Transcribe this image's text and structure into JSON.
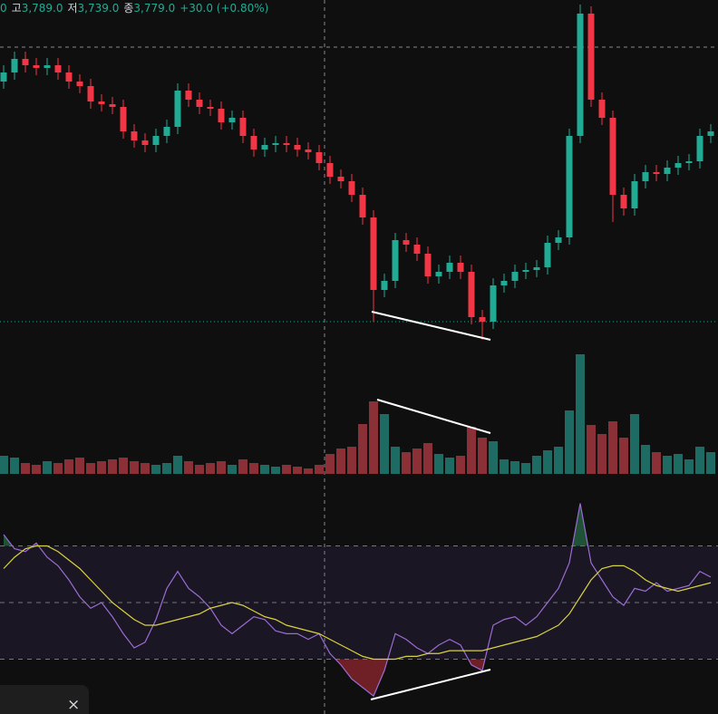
{
  "header": {
    "lead": "0",
    "high_label": "고",
    "high": "3,789.0",
    "low_label": "저",
    "low": "3,739.0",
    "close_label": "종",
    "close": "3,779.0",
    "change": "+30.0 (+0.80%)"
  },
  "panel": {
    "close_button": "×"
  },
  "chart_data": [
    {
      "type": "candlestick",
      "up_color": "#22ab94",
      "down_color": "#f23645",
      "ylim": [
        3600,
        3980
      ],
      "open": [
        3890,
        3900,
        3915,
        3908,
        3905,
        3908,
        3900,
        3890,
        3885,
        3868,
        3865,
        3862,
        3835,
        3825,
        3820,
        3830,
        3840,
        3880,
        3870,
        3862,
        3860,
        3845,
        3850,
        3830,
        3815,
        3820,
        3822,
        3820,
        3815,
        3812,
        3800,
        3785,
        3780,
        3765,
        3740,
        3660,
        3670,
        3715,
        3710,
        3700,
        3675,
        3680,
        3690,
        3680,
        3630,
        3625,
        3665,
        3670,
        3680,
        3682,
        3685,
        3712,
        3718,
        3830,
        3965,
        3870,
        3850,
        3765,
        3750,
        3780,
        3790,
        3788,
        3795,
        3800,
        3802,
        3830
      ],
      "high": [
        3908,
        3923,
        3923,
        3916,
        3916,
        3916,
        3908,
        3898,
        3893,
        3876,
        3873,
        3870,
        3843,
        3833,
        3838,
        3848,
        3888,
        3888,
        3878,
        3870,
        3868,
        3858,
        3858,
        3838,
        3828,
        3830,
        3830,
        3828,
        3823,
        3820,
        3808,
        3793,
        3788,
        3773,
        3748,
        3678,
        3723,
        3723,
        3718,
        3708,
        3688,
        3698,
        3698,
        3688,
        3638,
        3673,
        3678,
        3688,
        3690,
        3693,
        3720,
        3726,
        3838,
        3975,
        3973,
        3878,
        3858,
        3773,
        3788,
        3798,
        3798,
        3803,
        3808,
        3810,
        3838,
        3843
      ],
      "low": [
        3882,
        3892,
        3900,
        3897,
        3897,
        3892,
        3882,
        3877,
        3860,
        3857,
        3854,
        3827,
        3817,
        3812,
        3812,
        3822,
        3832,
        3862,
        3854,
        3852,
        3837,
        3837,
        3822,
        3807,
        3807,
        3812,
        3812,
        3807,
        3804,
        3792,
        3777,
        3772,
        3757,
        3732,
        3625,
        3652,
        3662,
        3702,
        3692,
        3667,
        3667,
        3672,
        3672,
        3622,
        3605,
        3617,
        3657,
        3662,
        3672,
        3674,
        3677,
        3704,
        3710,
        3822,
        3862,
        3842,
        3735,
        3742,
        3742,
        3772,
        3780,
        3780,
        3787,
        3792,
        3794,
        3822
      ],
      "close": [
        3900,
        3915,
        3908,
        3905,
        3908,
        3900,
        3890,
        3885,
        3868,
        3865,
        3862,
        3835,
        3825,
        3820,
        3830,
        3840,
        3880,
        3870,
        3862,
        3860,
        3845,
        3850,
        3830,
        3815,
        3820,
        3822,
        3820,
        3815,
        3812,
        3800,
        3785,
        3780,
        3765,
        3740,
        3660,
        3670,
        3715,
        3710,
        3700,
        3675,
        3680,
        3690,
        3680,
        3630,
        3625,
        3665,
        3670,
        3680,
        3682,
        3685,
        3712,
        3718,
        3830,
        3965,
        3870,
        3850,
        3765,
        3750,
        3780,
        3790,
        3788,
        3795,
        3800,
        3802,
        3830,
        3835
      ]
    },
    {
      "type": "bar",
      "up_color": "#1d6b63",
      "down_color": "#8a3036",
      "ylim": [
        0,
        143
      ],
      "values": [
        20,
        18,
        12,
        10,
        14,
        12,
        16,
        18,
        12,
        14,
        16,
        18,
        14,
        12,
        10,
        12,
        20,
        14,
        10,
        12,
        14,
        10,
        16,
        12,
        10,
        8,
        10,
        8,
        6,
        10,
        22,
        28,
        30,
        55,
        80,
        66,
        30,
        24,
        28,
        34,
        22,
        18,
        20,
        52,
        40,
        36,
        16,
        14,
        12,
        20,
        26,
        30,
        70,
        132,
        54,
        44,
        58,
        40,
        66,
        32,
        24,
        20,
        22,
        16,
        30,
        24
      ]
    },
    {
      "type": "line",
      "ylim": [
        10,
        90
      ],
      "levels": [
        70,
        50,
        30
      ],
      "series": [
        {
          "color": "#9b6cd4",
          "values": [
            74,
            69,
            68,
            71,
            66,
            63,
            58,
            52,
            48,
            50,
            45,
            39,
            34,
            36,
            44,
            55,
            61,
            55,
            52,
            48,
            42,
            39,
            42,
            45,
            44,
            40,
            39,
            39,
            37,
            39,
            32,
            28,
            23,
            20,
            17,
            26,
            39,
            37,
            34,
            32,
            35,
            37,
            35,
            28,
            26,
            42,
            44,
            45,
            42,
            45,
            50,
            55,
            64,
            85,
            64,
            58,
            52,
            49,
            55,
            54,
            57,
            54,
            55,
            56,
            61,
            59
          ]
        },
        {
          "color": "#d8d240",
          "values": [
            62,
            66,
            69,
            70,
            70,
            68,
            65,
            62,
            58,
            54,
            50,
            47,
            44,
            42,
            42,
            43,
            44,
            45,
            46,
            48,
            49,
            50,
            49,
            47,
            45,
            44,
            42,
            41,
            40,
            39,
            37,
            35,
            33,
            31,
            30,
            30,
            30,
            31,
            31,
            32,
            32,
            33,
            33,
            33,
            33,
            34,
            35,
            36,
            37,
            38,
            40,
            42,
            46,
            52,
            58,
            62,
            63,
            63,
            61,
            58,
            56,
            55,
            54,
            55,
            56,
            57
          ]
        }
      ]
    }
  ]
}
